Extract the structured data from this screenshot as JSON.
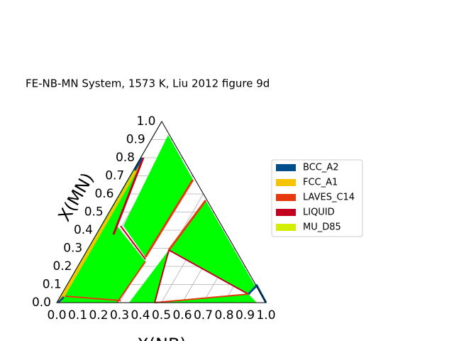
{
  "chart_data": {
    "type": "ternary",
    "title": "FE-NB-MN System, 1573 K, Liu 2012 figure 9d",
    "xlabel": "X(NB)",
    "ylabel": "X(MN)",
    "xlim": [
      0,
      1
    ],
    "ylim": [
      0,
      1
    ],
    "xticks": [
      {
        "value": 0,
        "label": "0.0"
      },
      0.1,
      0.2,
      0.3,
      0.4,
      0.5,
      0.6,
      0.7,
      0.8,
      0.9,
      {
        "value": 1,
        "label": "1.0"
      }
    ],
    "yticks": [
      {
        "value": 0,
        "label": "0.0"
      },
      0.1,
      0.2,
      0.3,
      0.4,
      0.5,
      0.6,
      0.7,
      0.8,
      0.9,
      {
        "value": 1,
        "label": "1.0"
      }
    ],
    "grid": true,
    "legend": "right",
    "phases": [
      {
        "name": "BCC_A2",
        "color": "#004f8c"
      },
      {
        "name": "FCC_A1",
        "color": "#f5c400"
      },
      {
        "name": "LAVES_C14",
        "color": "#e8380d"
      },
      {
        "name": "LIQUID",
        "color": "#c4001f"
      },
      {
        "name": "MU_D85",
        "color": "#d4ee00"
      }
    ]
  }
}
